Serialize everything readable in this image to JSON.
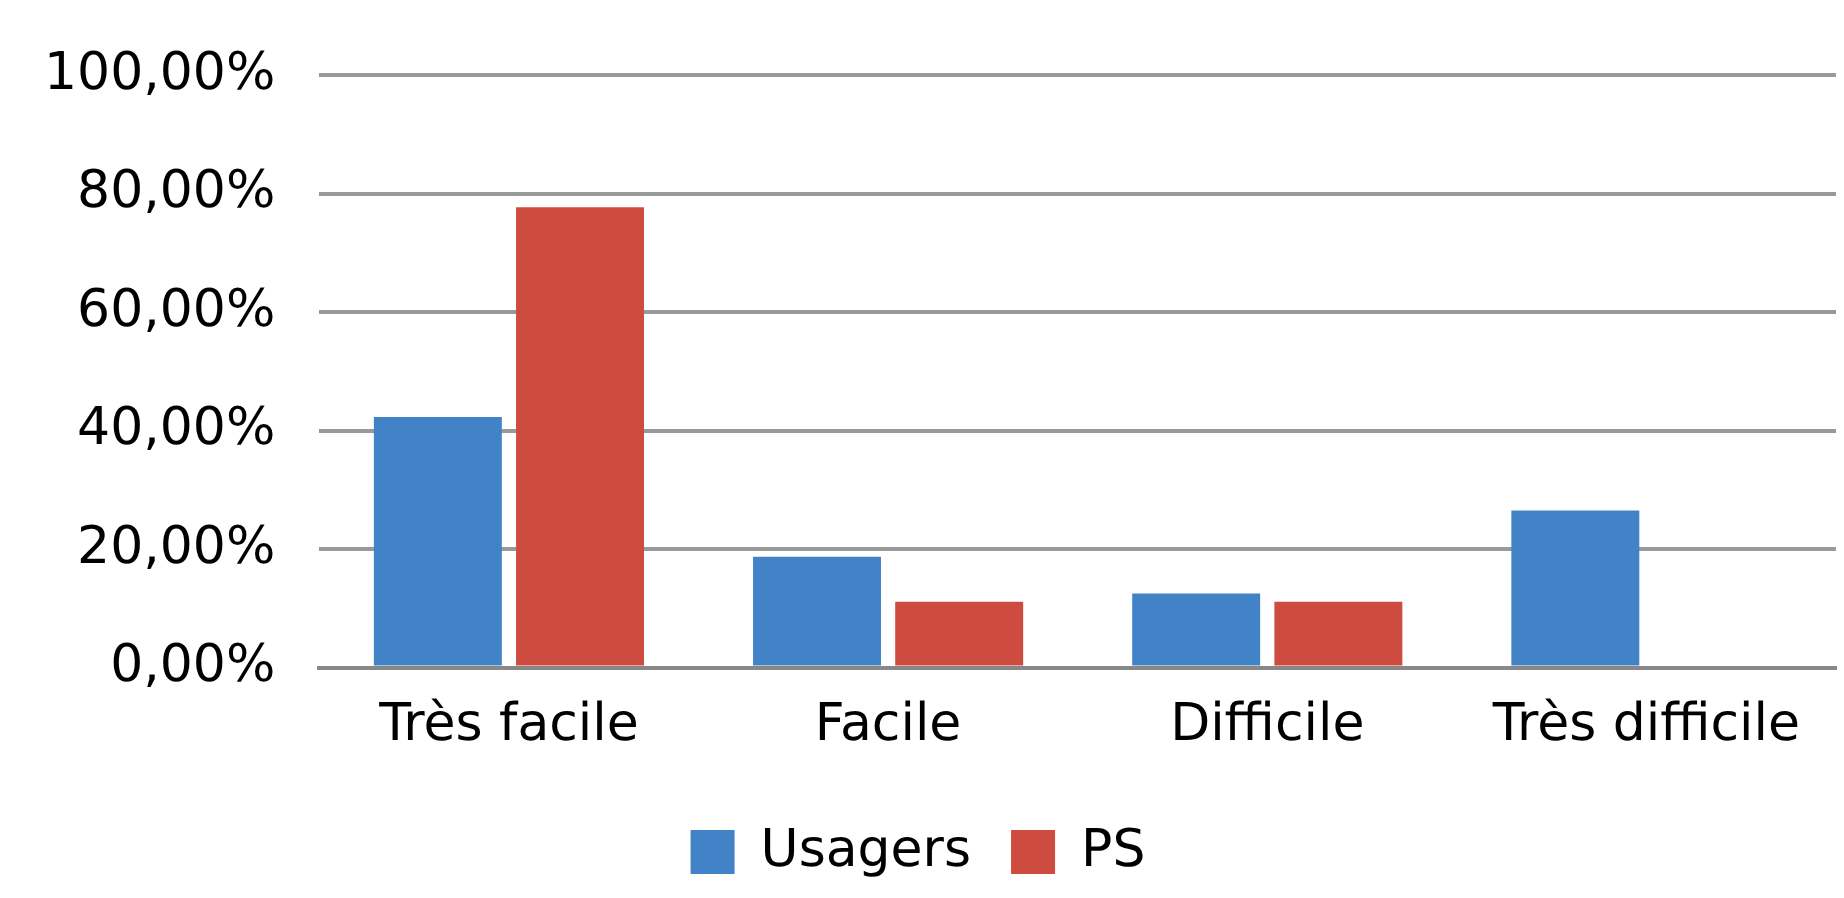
{
  "chart_data": {
    "type": "bar",
    "categories": [
      "Très facile",
      "Facile",
      "Difficile",
      "Très difficile"
    ],
    "series": [
      {
        "name": "Usagers",
        "color": "#4283c8",
        "values": [
          42.3,
          18.7,
          12.5,
          26.5
        ]
      },
      {
        "name": "PS",
        "color": "#cd4b3f",
        "values": [
          77.7,
          11.1,
          11.1,
          0
        ]
      }
    ],
    "ylim": [
      0,
      100
    ],
    "yticks": [
      {
        "value": 0,
        "label": "0,00%"
      },
      {
        "value": 20,
        "label": "20,00%"
      },
      {
        "value": 40,
        "label": "40,00%"
      },
      {
        "value": 60,
        "label": "60,00%"
      },
      {
        "value": 80,
        "label": "80,00%"
      },
      {
        "value": 100,
        "label": "100,00%"
      }
    ],
    "grid": "y",
    "legend": "bottom"
  }
}
